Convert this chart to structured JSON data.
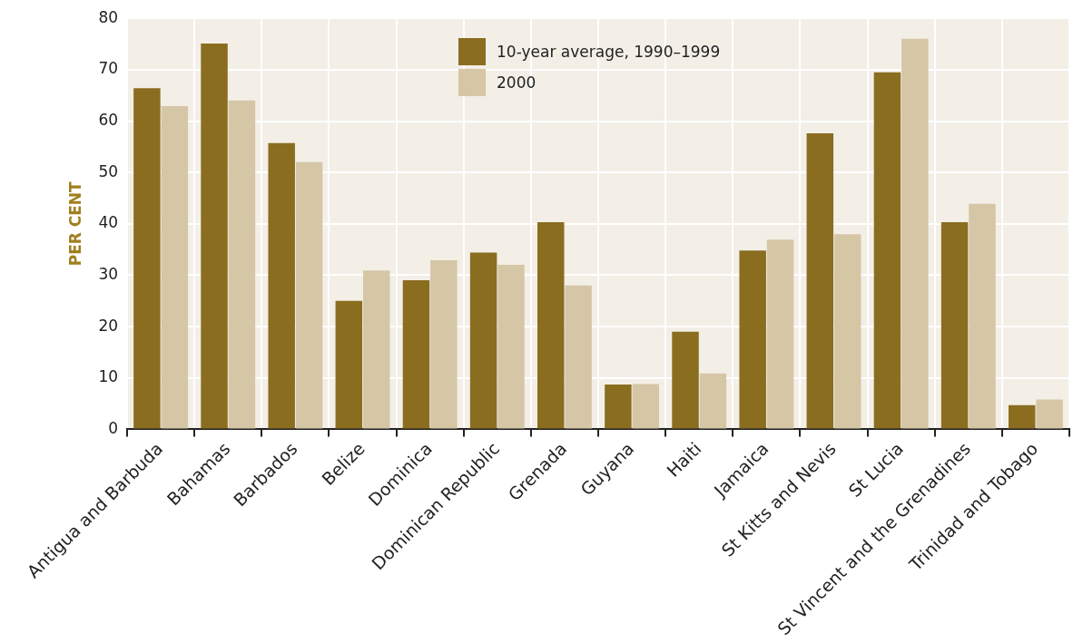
{
  "chart_data": {
    "type": "bar",
    "ylabel": "PER CENT",
    "categories": [
      "Antigua and Barbuda",
      "Bahamas",
      "Barbados",
      "Belize",
      "Dominica",
      "Dominican Republic",
      "Grenada",
      "Guyana",
      "Haiti",
      "Jamaica",
      "St Kitts and Nevis",
      "St Lucia",
      "St Vincent and the Grenadines",
      "Trinidad and Tobago"
    ],
    "series": [
      {
        "name": "10-year average, 1990–1999",
        "color": "#8a6d1f",
        "values": [
          66.4,
          75.1,
          55.7,
          25.0,
          29.0,
          34.4,
          40.3,
          8.7,
          19.0,
          34.8,
          57.6,
          69.5,
          40.3,
          4.7
        ]
      },
      {
        "name": "2000",
        "color": "#d5c6a6",
        "values": [
          62.9,
          64.0,
          52.0,
          30.9,
          32.9,
          32.0,
          28.0,
          8.8,
          10.9,
          36.9,
          38.0,
          76.0,
          43.9,
          5.8
        ]
      }
    ],
    "ylim": [
      0,
      80
    ],
    "yticks": [
      0,
      10,
      20,
      30,
      40,
      50,
      60,
      70,
      80
    ],
    "grid": true,
    "legend": "top"
  }
}
